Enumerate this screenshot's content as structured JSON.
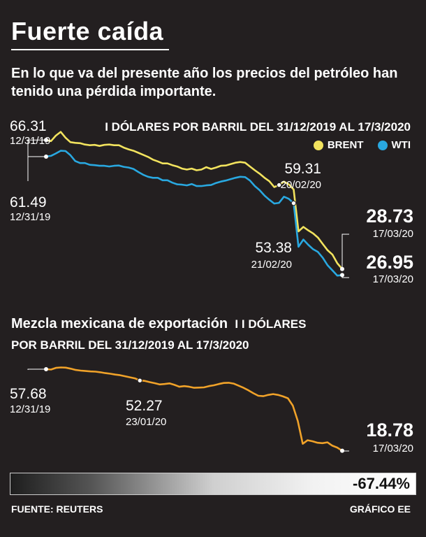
{
  "title": "Fuerte caída",
  "subtitle": "En lo que va del presente año los precios del petróleo han tenido una pérdida importante.",
  "chart_data": [
    {
      "type": "line",
      "header": "I DÓLARES POR BARRIL DEL 31/12/2019 AL 17/3/2020",
      "ylim": [
        25,
        68
      ],
      "series": [
        {
          "name": "BRENT",
          "color": "#f2e35e",
          "values": [
            66.31,
            66.0,
            67.6,
            68.7,
            67.0,
            65.7,
            65.5,
            65.4,
            65.0,
            64.8,
            64.9,
            64.6,
            64.9,
            65.0,
            64.8,
            64.8,
            64.1,
            63.6,
            63.2,
            62.6,
            62.0,
            61.4,
            60.6,
            60.1,
            59.5,
            59.5,
            59.0,
            58.6,
            58.0,
            57.7,
            58.0,
            57.5,
            57.7,
            58.4,
            57.9,
            58.3,
            58.8,
            58.9,
            59.3,
            59.7,
            59.9,
            59.7,
            58.6,
            57.5,
            56.5,
            55.3,
            54.3,
            52.6,
            53.2,
            54.2,
            53.4,
            51.9,
            39.7,
            41.0,
            40.0,
            39.1,
            37.9,
            36.0,
            34.2,
            32.9,
            30.4,
            28.73
          ],
          "start_label": {
            "value": "66.31",
            "date": "12/31/19"
          },
          "mid_label": {
            "value": "59.31",
            "date": "20/02/20"
          },
          "end_label": {
            "value": "28.73",
            "date": "17/03/20"
          }
        },
        {
          "name": "WTI",
          "color": "#29a8e0",
          "values": [
            61.49,
            61.7,
            62.4,
            63.2,
            63.1,
            61.9,
            60.2,
            59.6,
            59.6,
            59.1,
            59.0,
            58.8,
            58.8,
            58.6,
            58.8,
            58.9,
            58.5,
            58.3,
            57.9,
            57.0,
            56.2,
            55.6,
            55.3,
            55.3,
            54.6,
            54.6,
            53.9,
            53.4,
            53.3,
            53.1,
            53.5,
            52.9,
            52.9,
            53.1,
            53.2,
            53.8,
            54.2,
            54.5,
            54.9,
            55.3,
            55.6,
            55.5,
            54.5,
            52.9,
            51.7,
            50.1,
            48.9,
            47.8,
            48.0,
            49.8,
            49.2,
            47.9,
            35.2,
            37.3,
            35.8,
            34.5,
            33.7,
            32.0,
            29.8,
            28.3,
            26.8,
            26.95
          ],
          "start_label": {
            "value": "61.49",
            "date": "12/31/19"
          },
          "mid_label": {
            "value": "53.38",
            "date": "21/02/20"
          },
          "end_label": {
            "value": "26.95",
            "date": "17/03/20"
          }
        }
      ]
    },
    {
      "type": "line",
      "title": "Mezcla mexicana de exportación",
      "title_suffix": "I DÓLARES",
      "header": "POR BARRIL DEL 31/12/2019 AL 17/3/2020",
      "ylim": [
        18,
        60
      ],
      "series": [
        {
          "name": "Mezcla mexicana",
          "color": "#f0a229",
          "values": [
            57.68,
            57.5,
            58.3,
            58.5,
            58.4,
            57.9,
            57.3,
            57.0,
            56.8,
            56.6,
            56.5,
            56.2,
            55.8,
            55.5,
            55.1,
            54.8,
            54.3,
            53.8,
            53.3,
            52.27,
            52.1,
            51.5,
            51.0,
            50.4,
            50.6,
            50.9,
            50.2,
            49.3,
            49.6,
            49.3,
            48.8,
            48.9,
            49.0,
            49.6,
            50.0,
            50.6,
            51.1,
            51.2,
            50.8,
            49.8,
            48.8,
            47.6,
            46.2,
            45.0,
            44.8,
            45.4,
            45.8,
            45.4,
            44.7,
            43.8,
            40.3,
            33.0,
            22.1,
            23.8,
            23.3,
            22.6,
            22.4,
            22.8,
            21.2,
            20.3,
            18.78
          ],
          "start_label": {
            "value": "57.68",
            "date": "12/31/19"
          },
          "mid_label": {
            "value": "52.27",
            "date": "23/01/20"
          },
          "end_label": {
            "value": "18.78",
            "date": "17/03/20"
          }
        }
      ]
    }
  ],
  "summary": {
    "change_label": "-67.44%",
    "change_value": -67.44
  },
  "footer": {
    "source": "FUENTE: REUTERS",
    "credit": "GRÁFICO EE"
  }
}
